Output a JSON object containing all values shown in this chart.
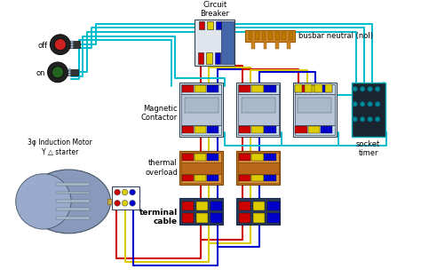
{
  "bg_color": "#ffffff",
  "wire_colors": {
    "red": "#cc0000",
    "blue": "#0000cc",
    "yellow": "#ddcc00",
    "cyan": "#00bbcc"
  },
  "labels": {
    "off": "off",
    "on": "on",
    "circuit_breaker": "Circuit\nBreaker",
    "busbar": "busbar neutral (nol)",
    "magnetic_contactor": "Magnetic\nContactor",
    "thermal_overload": "thermal\noverload",
    "terminal_cable": "terminal\ncable",
    "socket_timer": "socket\ntimer",
    "motor": "3φ Induction Motor\nY △ starter"
  },
  "component_color": "#d8dde8",
  "component_edge": "#445566",
  "busbar_color": "#cc8822",
  "motor_color": "#8899bb"
}
